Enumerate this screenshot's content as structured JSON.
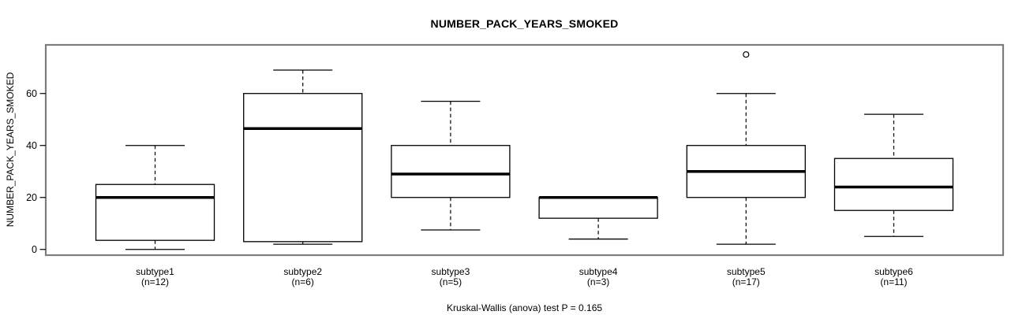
{
  "chart_data": {
    "type": "boxplot",
    "title": "NUMBER_PACK_YEARS_SMOKED",
    "ylabel": "NUMBER_PACK_YEARS_SMOKED",
    "footer": "Kruskal-Wallis (anova) test P = 0.165",
    "categories": [
      "subtype1",
      "subtype2",
      "subtype3",
      "subtype4",
      "subtype5",
      "subtype6"
    ],
    "count_labels": [
      "(n=12)",
      "(n=6)",
      "(n=5)",
      "(n=3)",
      "(n=17)",
      "(n=11)"
    ],
    "yticks": [
      0,
      20,
      40,
      60
    ],
    "ylim": [
      -2.2,
      78.7
    ],
    "grid": false,
    "legend": "none",
    "series": [
      {
        "label": "subtype1",
        "n": 12,
        "whisker_low": 0,
        "q1": 3.5,
        "median": 20,
        "q3": 25,
        "whisker_high": 40,
        "outliers": []
      },
      {
        "label": "subtype2",
        "n": 6,
        "whisker_low": 2,
        "q1": 3,
        "median": 46.5,
        "q3": 60,
        "whisker_high": 69,
        "outliers": []
      },
      {
        "label": "subtype3",
        "n": 5,
        "whisker_low": 7.5,
        "q1": 20,
        "median": 29,
        "q3": 40,
        "whisker_high": 57,
        "outliers": []
      },
      {
        "label": "subtype4",
        "n": 3,
        "whisker_low": 4,
        "q1": 12,
        "median": 20,
        "q3": 20,
        "whisker_high": 20,
        "outliers": []
      },
      {
        "label": "subtype5",
        "n": 17,
        "whisker_low": 2,
        "q1": 20,
        "median": 30,
        "q3": 40,
        "whisker_high": 60,
        "outliers": [
          75
        ]
      },
      {
        "label": "subtype6",
        "n": 11,
        "whisker_low": 5,
        "q1": 15,
        "median": 24,
        "q3": 35,
        "whisker_high": 52,
        "outliers": []
      }
    ],
    "colors": {
      "background": "#ffffff",
      "frame": "#7d7d7d",
      "box_stroke": "#000000",
      "box_fill": "#ffffff",
      "median": "#000000",
      "whisker": "#000000",
      "text": "#000000"
    }
  }
}
